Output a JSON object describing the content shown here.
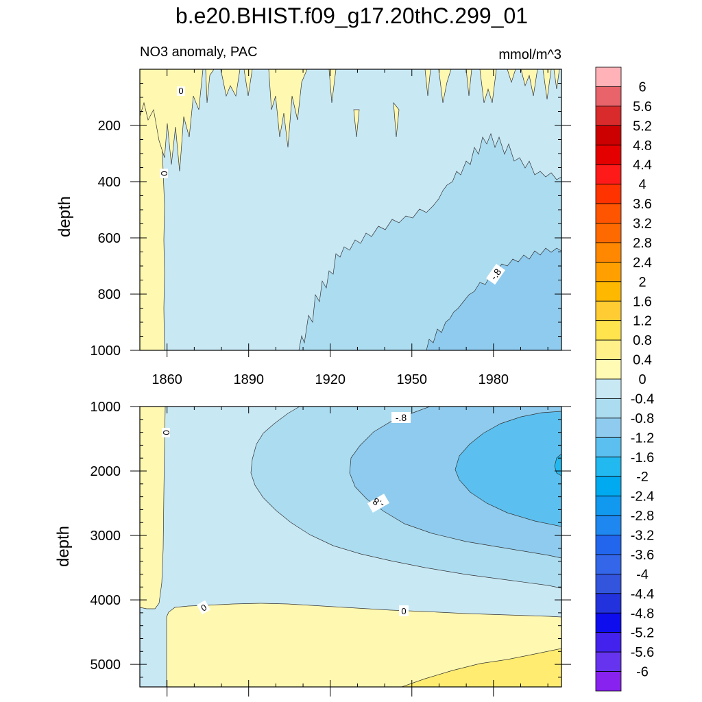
{
  "figure": {
    "title": "b.e20.BHIST.f09_g17.20thC.299_01",
    "left_subtitle": "NO3 anomaly, PAC",
    "units": "mmol/m^3"
  },
  "colorbar": {
    "levels": [
      "6",
      "5.6",
      "5.2",
      "4.8",
      "4.4",
      "4",
      "3.6",
      "3.2",
      "2.8",
      "2.4",
      "2",
      "1.6",
      "1.2",
      "0.8",
      "0.4",
      "0",
      "-0.4",
      "-0.8",
      "-1.2",
      "-1.6",
      "-2",
      "-2.4",
      "-2.8",
      "-3.2",
      "-3.6",
      "-4",
      "-4.4",
      "-4.8",
      "-5.2",
      "-5.6",
      "-6"
    ],
    "colors": [
      "#ffb3b8",
      "#e8636a",
      "#d92b2b",
      "#cc0000",
      "#e50000",
      "#ff1a1a",
      "#ff3300",
      "#ff5500",
      "#ff6a00",
      "#ff8800",
      "#ffa000",
      "#ffb800",
      "#ffcc33",
      "#ffe44d",
      "#fff08a",
      "#fffbb5",
      "#c8e8f4",
      "#acdcf0",
      "#8ecbee",
      "#5bc0f0",
      "#22b8f0",
      "#00aaf0",
      "#1199f0",
      "#1e88f0",
      "#2266ee",
      "#3366e8",
      "#3355dd",
      "#2233dd",
      "#0d0dee",
      "#4422ee",
      "#6633ee",
      "#8822ee"
    ]
  },
  "chart_data": [
    {
      "type": "heatmap",
      "panel": "upper",
      "title": "NO3 anomaly, PAC",
      "units": "mmol/m^3",
      "xlabel": "",
      "ylabel": "depth",
      "xlim": [
        1850,
        2005
      ],
      "ylim": [
        1000,
        0
      ],
      "xticks": [
        "1860",
        "1890",
        "1920",
        "1950",
        "1980"
      ],
      "yticks": [
        "200",
        "400",
        "600",
        "800",
        "1000"
      ],
      "contour_labels": [
        "0",
        "0",
        "-.8"
      ],
      "regions": [
        {
          "name": "0 to 0.4",
          "description_value_range": [
            0,
            0.4
          ]
        },
        {
          "name": "-0.4 to 0",
          "description_value_range": [
            -0.4,
            0
          ]
        },
        {
          "name": "-0.8 to -0.4",
          "description_value_range": [
            -0.8,
            -0.4
          ]
        },
        {
          "name": "-1.2 to -0.8",
          "description_value_range": [
            -1.2,
            -0.8
          ]
        }
      ]
    },
    {
      "type": "heatmap",
      "panel": "lower",
      "title": "",
      "xlabel": "",
      "ylabel": "depth",
      "xlim": [
        1850,
        2005
      ],
      "ylim": [
        5350,
        1000
      ],
      "xticks": [],
      "yticks": [
        "1000",
        "2000",
        "3000",
        "4000",
        "5000"
      ],
      "contour_labels": [
        "0",
        "0",
        "0",
        "-.8",
        "-.8"
      ],
      "regions": [
        {
          "name": "0 to 0.4",
          "description_value_range": [
            0,
            0.4
          ]
        },
        {
          "name": "0.4 to 0.8",
          "description_value_range": [
            0.4,
            0.8
          ]
        },
        {
          "name": "-0.4 to 0",
          "description_value_range": [
            -0.4,
            0
          ]
        },
        {
          "name": "-0.8 to -0.4",
          "description_value_range": [
            -0.8,
            -0.4
          ]
        },
        {
          "name": "-1.2 to -0.8",
          "description_value_range": [
            -1.2,
            -0.8
          ]
        },
        {
          "name": "-1.6 to -1.2",
          "description_value_range": [
            -1.6,
            -1.2
          ]
        }
      ]
    }
  ]
}
